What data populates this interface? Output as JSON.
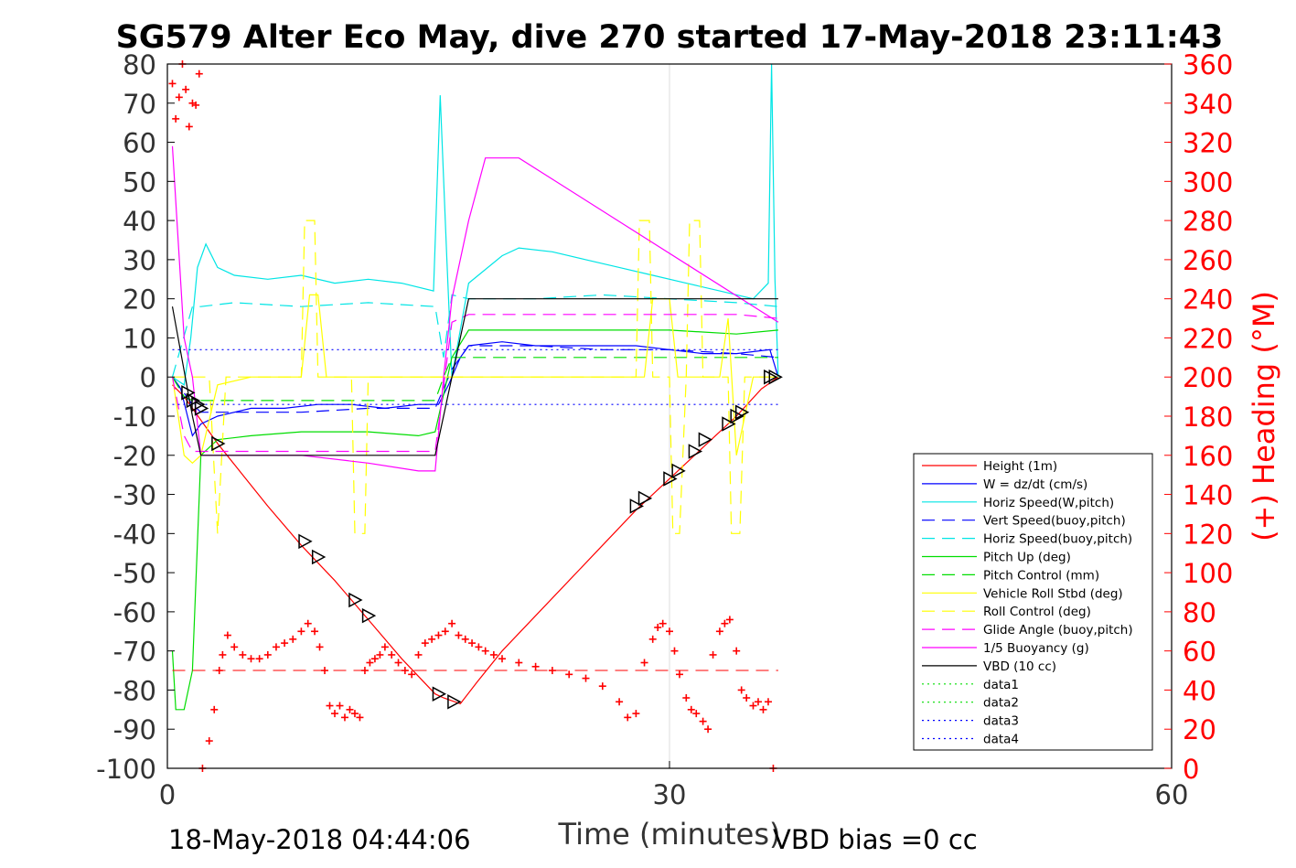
{
  "figure": {
    "title": "SG579 Alter Eco May, dive 270 started 17-May-2018 23:11:43",
    "footer_left": "18-May-2018 04:44:06",
    "footer_right": "VBD bias =0 cc"
  },
  "colors": {
    "red": "#ff0000",
    "blue": "#0000ff",
    "cyan": "#00e5e5",
    "green": "#00dd00",
    "yellow": "#ffff00",
    "magenta": "#ff00ff",
    "black": "#000000",
    "grid": "#dcdcdc"
  },
  "chart_data": {
    "type": "line",
    "title": "SG579 Alter Eco May, dive 270 started 17-May-2018 23:11:43",
    "xlabel": "Time (minutes)",
    "ylabel": "",
    "y2label": "(+) Heading (°M)",
    "xlim": [
      0,
      60
    ],
    "ylim": [
      -100,
      80
    ],
    "y2lim": [
      0,
      360
    ],
    "xticks": [
      "0",
      "30",
      "60"
    ],
    "yticks": [
      "80",
      "70",
      "60",
      "50",
      "40",
      "30",
      "20",
      "10",
      "0",
      "-10",
      "-20",
      "-30",
      "-40",
      "-50",
      "-60",
      "-70",
      "-80",
      "-90",
      "-100"
    ],
    "y2ticks": [
      "360",
      "340",
      "320",
      "300",
      "280",
      "260",
      "240",
      "220",
      "200",
      "180",
      "160",
      "140",
      "120",
      "100",
      "80",
      "60",
      "40",
      "20",
      "0"
    ],
    "grid": "x-only",
    "legend_position": "lower-right",
    "series": [
      {
        "name": "Height (1m)",
        "color": "#ff0000",
        "dash": "solid",
        "x": [
          0.3,
          1.0,
          1.5,
          2.0,
          2.5,
          3.0,
          4.5,
          6,
          8,
          10,
          12,
          14,
          16.0,
          16.5,
          17.5,
          18.5,
          20,
          22,
          24,
          26,
          28,
          30,
          32,
          34,
          35.5,
          36.5
        ],
        "y": [
          -2,
          -5,
          -8,
          -11,
          -14,
          -17,
          -25,
          -33,
          -43,
          -52,
          -62,
          -72,
          -81,
          -82,
          -83.5,
          -78,
          -70,
          -61,
          -52,
          -43,
          -34,
          -26,
          -18,
          -10,
          -3,
          0
        ]
      },
      {
        "name": "W = dz/dt (cm/s)",
        "color": "#0000ff",
        "dash": "solid",
        "x": [
          0.3,
          0.8,
          1.2,
          1.5,
          2,
          3,
          5,
          7,
          9,
          11,
          13,
          15,
          16.2,
          16.8,
          17.5,
          18,
          20,
          22,
          24,
          26,
          28,
          30,
          32,
          34,
          36,
          36.5
        ],
        "y": [
          0,
          -3,
          -10,
          -15,
          -12,
          -10,
          -8,
          -8,
          -7,
          -7,
          -8,
          -7,
          -7,
          -2,
          5,
          8,
          9,
          8,
          8,
          8,
          8,
          7,
          6,
          6,
          7,
          0
        ]
      },
      {
        "name": "Horiz Speed(W,pitch)",
        "color": "#00e5e5",
        "dash": "solid",
        "x": [
          0.3,
          1.0,
          1.4,
          1.8,
          2.3,
          3,
          4,
          6,
          8,
          10,
          12,
          14,
          15.9,
          16.3,
          16.7,
          17.0,
          18,
          20,
          21,
          23,
          25,
          27,
          29,
          31,
          33,
          35,
          35.9,
          36.1,
          36.3,
          36.5
        ],
        "y": [
          0,
          -2,
          10,
          28,
          34,
          28,
          26,
          25,
          26,
          24,
          25,
          24,
          22,
          72,
          30,
          0,
          24,
          31,
          33,
          32,
          30,
          28,
          26,
          24,
          22,
          20,
          24,
          80,
          25,
          0
        ]
      },
      {
        "name": "Vert Speed(buoy,pitch)",
        "color": "#0000ff",
        "dash": "dashed",
        "x": [
          0.3,
          1.5,
          2,
          4,
          8,
          12,
          16,
          17,
          18,
          22,
          26,
          30,
          34,
          36.5
        ],
        "y": [
          0,
          -7,
          -9,
          -9,
          -9,
          -8,
          -8,
          2,
          8,
          8,
          7,
          7,
          6,
          5
        ]
      },
      {
        "name": "Horiz Speed(buoy,pitch)",
        "color": "#00e5e5",
        "dash": "dashed",
        "x": [
          0.3,
          1.5,
          2,
          4,
          8,
          12,
          16,
          16.5,
          17,
          18,
          22,
          26,
          30,
          34,
          36.5
        ],
        "y": [
          0,
          18,
          18,
          19,
          18,
          19,
          18,
          5,
          21,
          20,
          20,
          21,
          20,
          19,
          18
        ]
      },
      {
        "name": "Pitch Up (deg)",
        "color": "#00dd00",
        "dash": "solid",
        "x": [
          0.3,
          0.5,
          1.0,
          1.5,
          2,
          3,
          5,
          8,
          12,
          15,
          16,
          17,
          18,
          22,
          26,
          30,
          34,
          36.5
        ],
        "y": [
          -70,
          -85,
          -85,
          -75,
          -20,
          -16,
          -15,
          -14,
          -14,
          -15,
          -14,
          5,
          12,
          12,
          12,
          12,
          11,
          12
        ]
      },
      {
        "name": "Pitch Control (mm)",
        "color": "#00dd00",
        "dash": "dashed",
        "x": [
          0.3,
          1.0,
          1.5,
          2,
          4,
          8,
          12,
          16,
          16.5,
          17,
          18,
          22,
          26,
          30,
          34,
          36.5
        ],
        "y": [
          0,
          -5,
          -6,
          -6,
          -6,
          -6,
          -6,
          -6,
          0,
          5,
          5,
          5,
          5,
          5,
          5,
          5
        ]
      },
      {
        "name": "Vehicle Roll Stbd (deg)",
        "color": "#ffff00",
        "dash": "solid",
        "x": [
          0.3,
          1.0,
          1.5,
          2,
          3,
          5,
          8,
          8.5,
          9,
          9.5,
          10,
          12,
          16,
          17,
          18,
          22,
          26,
          28.5,
          29,
          30,
          30.5,
          31,
          33,
          33.5,
          34,
          35,
          36.5
        ],
        "y": [
          0,
          -20,
          -22,
          -20,
          -2,
          0,
          0,
          21,
          21,
          0,
          0,
          0,
          0,
          0,
          0,
          0,
          0,
          0,
          20,
          20,
          0,
          0,
          0,
          15,
          -20,
          0,
          0
        ]
      },
      {
        "name": "Roll Control (deg)",
        "color": "#ffff00",
        "dash": "dashed",
        "x": [
          0.3,
          1.0,
          2.5,
          3,
          3.5,
          8,
          8.2,
          8.8,
          9,
          11,
          11.2,
          11.8,
          12,
          16,
          18,
          28,
          28.2,
          28.8,
          29,
          30,
          30.2,
          30.6,
          31,
          31.2,
          31.8,
          32,
          33.5,
          33.7,
          34.2,
          34.5,
          36.5
        ],
        "y": [
          0,
          0,
          0,
          -40,
          0,
          0,
          40,
          40,
          0,
          0,
          -40,
          -40,
          0,
          0,
          0,
          0,
          40,
          40,
          0,
          0,
          -40,
          -40,
          0,
          40,
          40,
          0,
          0,
          -40,
          -40,
          0,
          0
        ]
      },
      {
        "name": "Glide Angle (buoy,pitch)",
        "color": "#ff00ff",
        "dash": "dashed",
        "x": [
          0.3,
          1.0,
          1.5,
          2,
          4,
          8,
          12,
          16,
          17,
          18,
          22,
          26,
          30,
          34,
          36.5
        ],
        "y": [
          0,
          -15,
          -19,
          -19,
          -19,
          -19,
          -19,
          -19,
          14,
          16,
          16,
          16,
          16,
          16,
          15
        ]
      },
      {
        "name": "1/5 Buoyancy (g)",
        "color": "#ff00ff",
        "dash": "solid",
        "x": [
          0.3,
          1.0,
          1.5,
          2,
          4,
          8,
          12,
          15,
          16,
          16.5,
          17,
          18,
          19,
          20,
          21,
          36.5
        ],
        "y": [
          59,
          10,
          0,
          -20,
          -20,
          -20,
          -22,
          -24,
          -24,
          0,
          20,
          40,
          56,
          56,
          56,
          14
        ]
      },
      {
        "name": "VBD (10 cc)",
        "color": "#000000",
        "dash": "solid",
        "x": [
          0.3,
          1.5,
          2,
          4,
          8,
          12,
          16,
          17,
          18,
          19,
          20,
          24,
          28,
          32,
          36.5
        ],
        "y": [
          18,
          -10,
          -20,
          -20,
          -20,
          -20,
          -20,
          0,
          20,
          20,
          20,
          20,
          20,
          20,
          20
        ]
      },
      {
        "name": "data1",
        "color": "#00dd00",
        "dash": "dotted",
        "x": [],
        "y": []
      },
      {
        "name": "data2",
        "color": "#00dd00",
        "dash": "dotted",
        "x": [],
        "y": []
      },
      {
        "name": "data3",
        "color": "#0000ff",
        "dash": "dotted",
        "x": [
          0.3,
          36.5
        ],
        "y": [
          7,
          7
        ]
      },
      {
        "name": "data4",
        "color": "#0000ff",
        "dash": "dotted",
        "x": [
          0.3,
          36.5
        ],
        "y": [
          -7,
          -7
        ]
      }
    ],
    "reference_line": {
      "color": "#ff0000",
      "dash": "dashed",
      "y2": 50,
      "x": [
        0.3,
        36.5
      ]
    },
    "heading_points": {
      "color": "#ff0000",
      "marker": "+",
      "x": [
        0.3,
        0.5,
        0.7,
        0.9,
        1.1,
        1.3,
        1.5,
        1.7,
        1.9,
        2.1,
        2.5,
        2.8,
        3.1,
        3.3,
        3.6,
        4,
        4.5,
        5,
        5.5,
        6,
        6.5,
        7,
        7.5,
        8,
        8.4,
        8.8,
        9.1,
        9.4,
        9.7,
        10,
        10.3,
        10.6,
        10.9,
        11.2,
        11.5,
        11.8,
        12.1,
        12.4,
        12.7,
        13,
        13.4,
        13.8,
        14.2,
        14.6,
        15,
        15.4,
        15.8,
        16.2,
        16.6,
        17,
        17.4,
        17.8,
        18.2,
        18.6,
        19,
        19.5,
        20,
        21,
        22,
        23,
        24,
        25,
        26,
        27,
        27.5,
        28,
        28.5,
        29,
        29.3,
        29.6,
        30,
        30.3,
        30.6,
        31,
        31.3,
        31.6,
        32,
        32.3,
        32.6,
        33,
        33.3,
        33.6,
        34,
        34.3,
        34.6,
        35,
        35.3,
        35.6,
        35.9,
        36.2
      ],
      "y2": [
        350,
        332,
        343,
        360,
        347,
        328,
        340,
        339,
        355,
        0,
        14,
        30,
        50,
        58,
        68,
        62,
        58,
        56,
        56,
        58,
        62,
        64,
        66,
        70,
        74,
        70,
        62,
        50,
        32,
        28,
        32,
        26,
        30,
        28,
        26,
        50,
        54,
        56,
        58,
        62,
        58,
        54,
        50,
        48,
        58,
        64,
        66,
        68,
        70,
        74,
        68,
        66,
        64,
        62,
        60,
        58,
        56,
        54,
        52,
        50,
        48,
        46,
        42,
        34,
        26,
        28,
        54,
        66,
        72,
        74,
        70,
        60,
        48,
        36,
        30,
        28,
        24,
        20,
        58,
        70,
        74,
        76,
        60,
        40,
        36,
        32,
        34,
        30,
        34,
        0
      ]
    },
    "triangle_markers": {
      "color": "#000000",
      "x": [
        1.2,
        1.5,
        1.8,
        2.0,
        3.0,
        8.2,
        9.0,
        11.2,
        12.0,
        16.2,
        17.1,
        28.0,
        28.5,
        30.0,
        30.5,
        31.5,
        32.1,
        33.5,
        34.0,
        34.3,
        36.0,
        36.3
      ],
      "y": [
        -4,
        -6,
        -7,
        -8,
        -17,
        -42,
        -46,
        -57,
        -61,
        -81,
        -83,
        -33,
        -31,
        -26,
        -24,
        -19,
        -16,
        -12,
        -10,
        -9,
        0,
        0
      ]
    }
  },
  "legend": {
    "entries": [
      "Height (1m)",
      "W = dz/dt (cm/s)",
      "Horiz Speed(W,pitch)",
      "Vert Speed(buoy,pitch)",
      "Horiz Speed(buoy,pitch)",
      "Pitch Up (deg)",
      "Pitch Control (mm)",
      "Vehicle Roll Stbd (deg)",
      "Roll Control (deg)",
      "Glide Angle (buoy,pitch)",
      "1/5 Buoyancy (g)",
      "VBD (10 cc)",
      "data1",
      "data2",
      "data3",
      "data4"
    ]
  }
}
